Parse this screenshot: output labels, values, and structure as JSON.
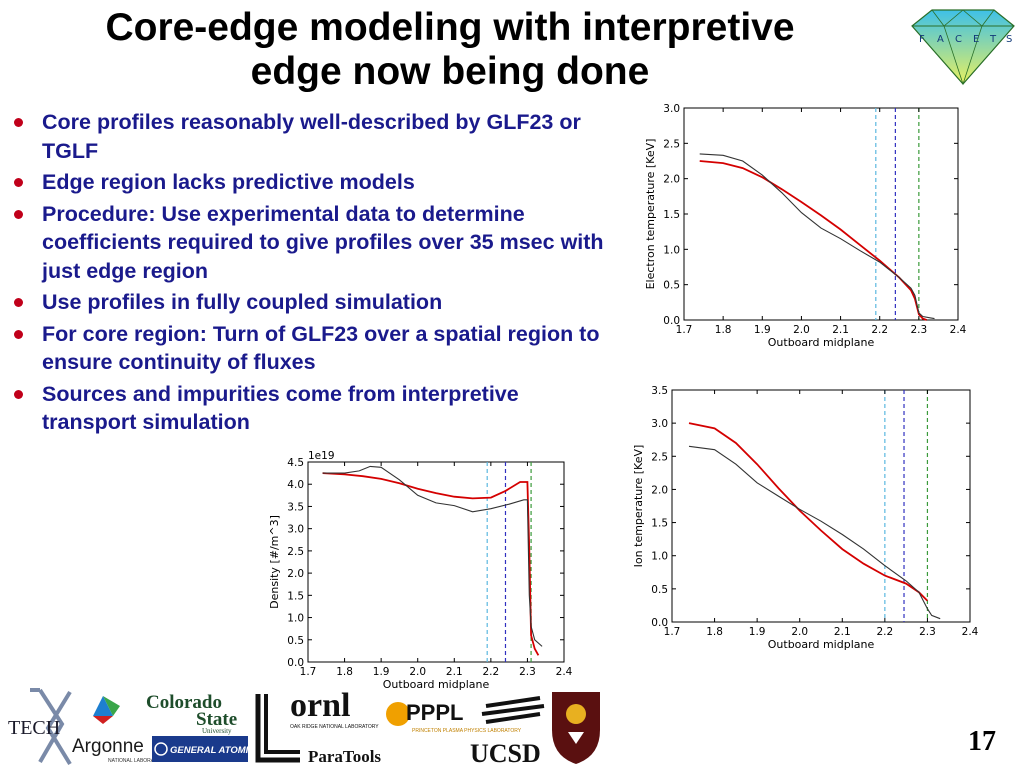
{
  "slide": {
    "title_line1": "Core-edge modeling with interpretive",
    "title_line2": "edge now being done",
    "page_number": "17",
    "bullets": [
      "Core profiles reasonably well-described by GLF23 or TGLF",
      "Edge region lacks predictive models",
      "Procedure: Use experimental data to determine coefficients required to give profiles over 35 msec with just edge region",
      "Use profiles in fully coupled simulation",
      "For core region: Turn of GLF23 over a spatial region to ensure continuity of fluxes",
      "Sources and impurities come from interpretive transport simulation"
    ],
    "logos": {
      "facets_letters": [
        "F",
        "A",
        "C",
        "E",
        "T",
        "S"
      ],
      "tech": "TECH",
      "argonne": "Argonne",
      "argonne_sub": "NATIONAL LABORATORY",
      "colorado_line1": "Colorado",
      "colorado_line2": "State",
      "colorado_line3": "University",
      "general_atomics": "GENERAL ATOMICS",
      "ornl": "ornl",
      "ornl_sub": "OAK RIDGE NATIONAL LABORATORY",
      "pppl": "PPPL",
      "pppl_sub": "PRINCETON PLASMA PHYSICS LABORATORY",
      "paratools": "ParaTools",
      "ucsd": "UCSD"
    },
    "colors": {
      "bullet_text": "#1a1a8c",
      "bullet_dot": "#c0001a",
      "model_line": "#d40000",
      "experiment_line": "#333333",
      "vline_cyan": "#5bb8e0",
      "vline_blue": "#3030c0",
      "vline_green": "#3a9a3a"
    }
  },
  "chart_data": [
    {
      "id": "electron",
      "type": "line",
      "xlabel": "Outboard midplane",
      "ylabel": "Electron temperature [KeV]",
      "xlim": [
        1.7,
        2.4
      ],
      "ylim": [
        0.0,
        3.0
      ],
      "xticks": [
        "1.7",
        "1.8",
        "1.9",
        "2.0",
        "2.1",
        "2.2",
        "2.3",
        "2.4"
      ],
      "yticks": [
        "0.0",
        "0.5",
        "1.0",
        "1.5",
        "2.0",
        "2.5",
        "3.0"
      ],
      "vlines": [
        2.19,
        2.24,
        2.3
      ],
      "series": [
        {
          "color": "red",
          "x": [
            1.74,
            1.8,
            1.85,
            1.9,
            1.95,
            2.0,
            2.05,
            2.1,
            2.15,
            2.2,
            2.25,
            2.28,
            2.29,
            2.3,
            2.31,
            2.32
          ],
          "y": [
            2.25,
            2.22,
            2.15,
            2.02,
            1.85,
            1.67,
            1.48,
            1.28,
            1.06,
            0.84,
            0.6,
            0.42,
            0.3,
            0.08,
            0.02,
            0.0
          ]
        },
        {
          "color": "dark",
          "x": [
            1.74,
            1.8,
            1.85,
            1.9,
            1.95,
            2.0,
            2.05,
            2.1,
            2.15,
            2.2,
            2.25,
            2.28,
            2.29,
            2.3,
            2.31,
            2.33,
            2.34
          ],
          "y": [
            2.35,
            2.33,
            2.25,
            2.05,
            1.8,
            1.52,
            1.3,
            1.15,
            0.98,
            0.82,
            0.6,
            0.45,
            0.35,
            0.1,
            0.05,
            0.03,
            0.02
          ]
        }
      ]
    },
    {
      "id": "ion",
      "type": "line",
      "xlabel": "Outboard midplane",
      "ylabel": "Ion temperature [KeV]",
      "xlim": [
        1.7,
        2.4
      ],
      "ylim": [
        0.0,
        3.5
      ],
      "xticks": [
        "1.7",
        "1.8",
        "1.9",
        "2.0",
        "2.1",
        "2.2",
        "2.3",
        "2.4"
      ],
      "yticks": [
        "0.0",
        "0.5",
        "1.0",
        "1.5",
        "2.0",
        "2.5",
        "3.0",
        "3.5"
      ],
      "vlines": [
        2.2,
        2.245,
        2.3
      ],
      "series": [
        {
          "color": "red",
          "x": [
            1.74,
            1.8,
            1.85,
            1.9,
            1.95,
            2.0,
            2.05,
            2.1,
            2.15,
            2.2,
            2.25,
            2.28,
            2.3
          ],
          "y": [
            3.0,
            2.92,
            2.7,
            2.38,
            2.02,
            1.68,
            1.38,
            1.1,
            0.88,
            0.7,
            0.58,
            0.45,
            0.32
          ]
        },
        {
          "color": "dark",
          "x": [
            1.74,
            1.8,
            1.85,
            1.9,
            1.95,
            2.0,
            2.05,
            2.1,
            2.15,
            2.2,
            2.25,
            2.28,
            2.3,
            2.31,
            2.33
          ],
          "y": [
            2.65,
            2.6,
            2.38,
            2.1,
            1.9,
            1.7,
            1.52,
            1.32,
            1.1,
            0.85,
            0.62,
            0.45,
            0.2,
            0.1,
            0.05
          ]
        }
      ]
    },
    {
      "id": "density",
      "type": "line",
      "xlabel": "Outboard midplane",
      "ylabel": "Density [#/m^3]",
      "multiplier": "1e19",
      "xlim": [
        1.7,
        2.4
      ],
      "ylim": [
        0.0,
        4.5
      ],
      "xticks": [
        "1.7",
        "1.8",
        "1.9",
        "2.0",
        "2.1",
        "2.2",
        "2.3",
        "2.4"
      ],
      "yticks": [
        "0.0",
        "0.5",
        "1.0",
        "1.5",
        "2.0",
        "2.5",
        "3.0",
        "3.5",
        "4.0",
        "4.5"
      ],
      "vlines": [
        2.19,
        2.24,
        2.31
      ],
      "series": [
        {
          "color": "red",
          "x": [
            1.74,
            1.8,
            1.85,
            1.9,
            1.95,
            2.0,
            2.05,
            2.1,
            2.15,
            2.2,
            2.24,
            2.28,
            2.3,
            2.305,
            2.31,
            2.32,
            2.33
          ],
          "y": [
            4.25,
            4.22,
            4.18,
            4.12,
            4.02,
            3.9,
            3.8,
            3.72,
            3.68,
            3.7,
            3.85,
            4.05,
            4.05,
            2.5,
            0.6,
            0.3,
            0.15
          ]
        },
        {
          "color": "dark",
          "x": [
            1.74,
            1.8,
            1.84,
            1.87,
            1.9,
            1.95,
            2.0,
            2.05,
            2.1,
            2.15,
            2.2,
            2.25,
            2.29,
            2.3,
            2.305,
            2.31,
            2.32,
            2.34
          ],
          "y": [
            4.25,
            4.25,
            4.3,
            4.4,
            4.38,
            4.1,
            3.75,
            3.58,
            3.52,
            3.38,
            3.45,
            3.55,
            3.65,
            3.65,
            1.5,
            0.8,
            0.5,
            0.35
          ]
        }
      ]
    }
  ]
}
